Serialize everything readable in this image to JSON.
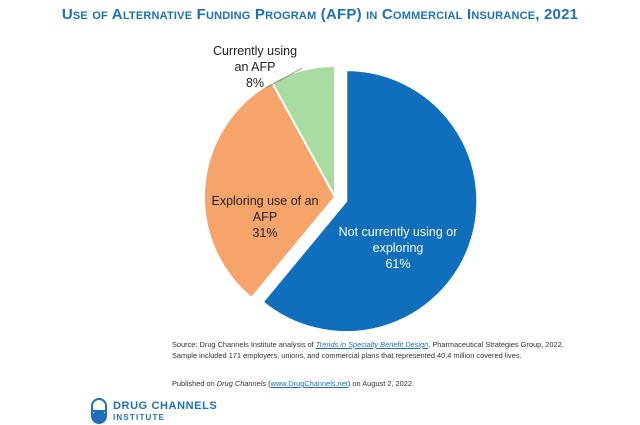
{
  "chart_data": {
    "type": "pie",
    "title": "Use of Alternative Funding Program (AFP) in Commercial Insurance, 2021",
    "slices": [
      {
        "label_lines": [
          "Not currently using or",
          "exploring"
        ],
        "value": 61,
        "value_label": "61%",
        "color": "#0f6fbd",
        "exploded": true
      },
      {
        "label_lines": [
          "Exploring use of an",
          "AFP"
        ],
        "value": 31,
        "value_label": "31%",
        "color": "#f7a46a",
        "exploded": false
      },
      {
        "label_lines": [
          "Currently using",
          "an AFP"
        ],
        "value": 8,
        "value_label": "8%",
        "color": "#a8dca0",
        "exploded": false
      }
    ]
  },
  "source": {
    "prefix": "Source: Drug Channels Institute analysis of ",
    "link_text": "Trends in Specialty Benefit Design",
    "suffix": ", Pharmaceutical Strategies Group, 2022. Sample included 171 employers, unions, and commercial plans that represented 40.4 million covered lives."
  },
  "published": {
    "prefix": "Published on ",
    "publication": "Drug Channels",
    "middle": " (",
    "url": "www.DrugChannels.net",
    "suffix": ") on August 2, 2022."
  },
  "logo": {
    "line1": "DRUG CHANNELS",
    "line2": "INSTITUTE"
  }
}
